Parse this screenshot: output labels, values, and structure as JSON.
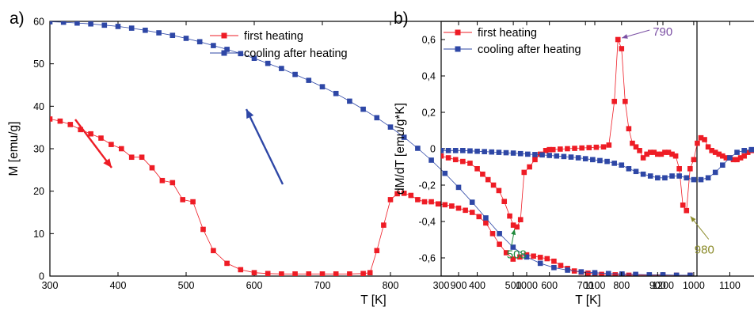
{
  "chart_data": [
    {
      "type": "scatter",
      "panel_label": "a)",
      "xlabel": "T [K]",
      "ylabel": "M [emu/g]",
      "xlim": [
        300,
        1250
      ],
      "ylim": [
        0,
        60
      ],
      "xticks": [
        300,
        400,
        500,
        600,
        700,
        800,
        900,
        1000,
        1100,
        1200
      ],
      "yticks": [
        0,
        10,
        20,
        30,
        40,
        50,
        60
      ],
      "xtick_labels": [
        "300",
        "400",
        "500",
        "600",
        "700",
        "800",
        "900",
        "1000",
        "1100",
        "1200"
      ],
      "ytick_labels": [
        "0",
        "10",
        "20",
        "30",
        "40",
        "50",
        "60"
      ],
      "legend_position": "top-right",
      "series": [
        {
          "name": "first heating",
          "color": "#ee1c25",
          "marker": "square",
          "x": [
            300,
            315,
            330,
            345,
            360,
            375,
            390,
            405,
            420,
            435,
            450,
            465,
            480,
            495,
            510,
            525,
            540,
            560,
            580,
            600,
            620,
            640,
            660,
            680,
            700,
            720,
            740,
            760,
            770,
            780,
            790,
            800,
            810,
            820,
            830,
            840,
            850,
            860,
            870,
            880,
            890,
            900,
            910,
            920,
            930,
            940,
            950,
            960,
            970,
            980,
            990,
            1000,
            1010,
            1020,
            1030,
            1040,
            1050,
            1060,
            1070,
            1080,
            1090,
            1100,
            1110,
            1120,
            1130,
            1140,
            1150,
            1160,
            1180,
            1200,
            1220,
            1240
          ],
          "y": [
            37,
            36.5,
            35.7,
            34.5,
            33.5,
            32.5,
            31,
            30,
            28,
            28,
            25.5,
            22.5,
            22,
            18,
            17.5,
            11,
            6,
            3,
            1.5,
            0.8,
            0.6,
            0.5,
            0.5,
            0.5,
            0.5,
            0.5,
            0.5,
            0.6,
            0.8,
            6,
            12,
            18,
            19.4,
            19.5,
            19,
            18,
            17.5,
            17.5,
            17,
            16.8,
            16.5,
            16,
            15.5,
            15,
            14,
            12.5,
            10,
            7.5,
            5.5,
            4,
            4.5,
            5,
            4.7,
            4.4,
            4.1,
            3.5,
            2.5,
            1.8,
            1.2,
            0.9,
            0.7,
            0.5,
            0.4,
            0.3,
            0.3,
            0.2,
            0.2,
            0.2,
            0.2,
            0.2,
            0.2,
            0.2
          ]
        },
        {
          "name": "cooling after heating",
          "color": "#2e47a6",
          "marker": "square",
          "x": [
            300,
            320,
            340,
            360,
            380,
            400,
            420,
            440,
            460,
            480,
            500,
            520,
            540,
            560,
            580,
            600,
            620,
            640,
            660,
            680,
            700,
            720,
            740,
            760,
            780,
            800,
            820,
            840,
            860,
            880,
            900,
            920,
            940,
            960,
            980,
            1000,
            1020,
            1040,
            1060,
            1080,
            1100,
            1120,
            1140,
            1160,
            1180,
            1200,
            1220,
            1240
          ],
          "y": [
            59.9,
            59.8,
            59.6,
            59.4,
            59.1,
            58.8,
            58.4,
            57.9,
            57.3,
            56.7,
            56,
            55.2,
            54.3,
            53.4,
            52.4,
            51.3,
            50.1,
            48.9,
            47.5,
            46.1,
            44.6,
            43,
            41.2,
            39.3,
            37.3,
            35.1,
            32.7,
            30.1,
            27.3,
            24.2,
            20.9,
            17.4,
            13.7,
            10,
            6.8,
            4.5,
            3,
            2,
            1.4,
            1,
            0.8,
            0.6,
            0.5,
            0.4,
            0.3,
            0.3,
            0.2,
            0.2
          ]
        }
      ]
    },
    {
      "type": "scatter",
      "panel_label": "b)",
      "xlabel": "T [K]",
      "ylabel": "dM/dT [emu/g*K]",
      "xlim": [
        300,
        1200
      ],
      "ylim": [
        -0.7,
        0.7
      ],
      "xticks": [
        300,
        400,
        500,
        600,
        700,
        800,
        900,
        1000,
        1100,
        1200
      ],
      "yticks": [
        -0.6,
        -0.4,
        -0.2,
        0,
        0.2,
        0.4,
        0.6
      ],
      "xtick_labels": [
        "300",
        "400",
        "500",
        "600",
        "700",
        "800",
        "900",
        "1000",
        "1100",
        "1200"
      ],
      "ytick_labels": [
        "-0,6",
        "-0,4",
        "-0,2",
        "0",
        "0,2",
        "0,4",
        "0,6"
      ],
      "legend_position": "top-left",
      "annotations": [
        {
          "text": "790",
          "x": 790,
          "y": 0.6,
          "color": "#7a4fa3"
        },
        {
          "text": "508",
          "x": 508,
          "y": -0.42,
          "color": "#1f8a3c"
        },
        {
          "text": "980",
          "x": 980,
          "y": -0.35,
          "color": "#8a8a28"
        }
      ],
      "series": [
        {
          "name": "first heating",
          "color": "#ee1c25",
          "marker": "square",
          "x": [
            300,
            320,
            340,
            360,
            380,
            400,
            415,
            430,
            445,
            460,
            475,
            490,
            500,
            510,
            520,
            530,
            545,
            560,
            575,
            590,
            600,
            610,
            630,
            650,
            670,
            690,
            710,
            730,
            750,
            765,
            780,
            790,
            800,
            810,
            820,
            830,
            840,
            850,
            860,
            870,
            880,
            890,
            900,
            910,
            920,
            930,
            940,
            950,
            960,
            970,
            980,
            990,
            1000,
            1010,
            1020,
            1030,
            1040,
            1050,
            1060,
            1070,
            1080,
            1090,
            1100,
            1110,
            1120,
            1130,
            1140,
            1150,
            1160,
            1180,
            1200
          ],
          "y": [
            -0.04,
            -0.05,
            -0.06,
            -0.07,
            -0.08,
            -0.11,
            -0.14,
            -0.17,
            -0.2,
            -0.23,
            -0.29,
            -0.37,
            -0.42,
            -0.43,
            -0.39,
            -0.13,
            -0.1,
            -0.06,
            -0.03,
            -0.01,
            -0.005,
            -0.005,
            -0.002,
            0,
            0.002,
            0.004,
            0.006,
            0.008,
            0.01,
            0.02,
            0.26,
            0.6,
            0.55,
            0.26,
            0.11,
            0.03,
            0.01,
            -0.01,
            -0.05,
            -0.03,
            -0.02,
            -0.02,
            -0.03,
            -0.03,
            -0.02,
            -0.02,
            -0.03,
            -0.04,
            -0.11,
            -0.31,
            -0.34,
            -0.11,
            -0.06,
            0.03,
            0.06,
            0.05,
            0.01,
            -0.01,
            -0.02,
            -0.03,
            -0.04,
            -0.05,
            -0.05,
            -0.06,
            -0.06,
            -0.05,
            -0.04,
            -0.02,
            -0.01,
            -0.01,
            -0.01
          ]
        },
        {
          "name": "cooling after heating",
          "color": "#2e47a6",
          "marker": "square",
          "x": [
            300,
            320,
            340,
            360,
            380,
            400,
            420,
            440,
            460,
            480,
            500,
            520,
            540,
            560,
            580,
            600,
            620,
            640,
            660,
            680,
            700,
            720,
            740,
            760,
            780,
            800,
            820,
            840,
            860,
            880,
            900,
            920,
            940,
            960,
            980,
            1000,
            1020,
            1040,
            1060,
            1080,
            1100,
            1120,
            1140,
            1160,
            1180,
            1200
          ],
          "y": [
            -0.01,
            -0.01,
            -0.01,
            -0.01,
            -0.012,
            -0.014,
            -0.016,
            -0.018,
            -0.02,
            -0.022,
            -0.024,
            -0.027,
            -0.03,
            -0.032,
            -0.034,
            -0.037,
            -0.04,
            -0.043,
            -0.046,
            -0.05,
            -0.055,
            -0.06,
            -0.065,
            -0.07,
            -0.08,
            -0.09,
            -0.11,
            -0.125,
            -0.14,
            -0.15,
            -0.16,
            -0.16,
            -0.15,
            -0.15,
            -0.16,
            -0.17,
            -0.17,
            -0.16,
            -0.13,
            -0.09,
            -0.05,
            -0.02,
            -0.01,
            -0.005,
            -0.003,
            -0.002
          ]
        }
      ]
    }
  ]
}
